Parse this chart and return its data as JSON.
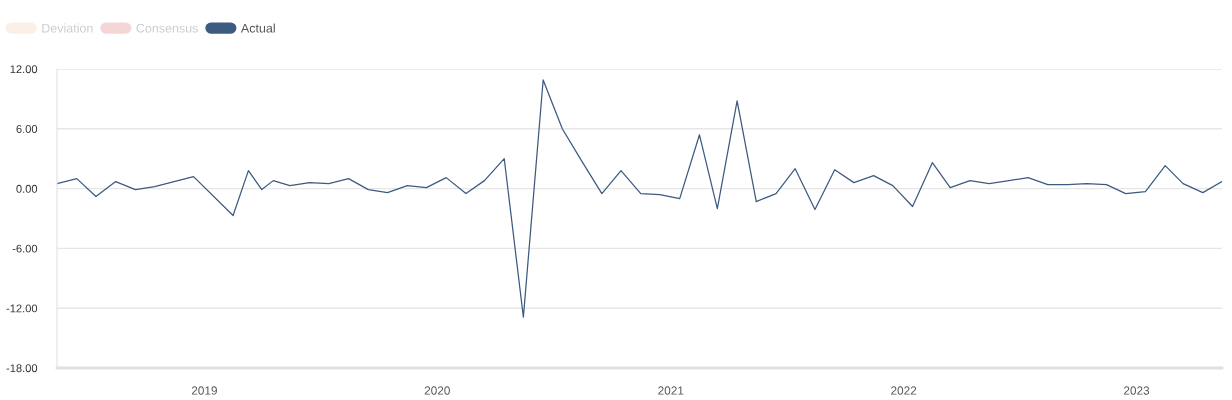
{
  "chart_data": {
    "type": "line",
    "x": [
      "2018-05-15",
      "2018-06-15",
      "2018-07-15",
      "2018-08-15",
      "2018-09-15",
      "2018-10-15",
      "2018-12-15",
      "2019-02-15",
      "2019-03-11",
      "2019-04-01",
      "2019-04-19",
      "2019-05-15",
      "2019-06-15",
      "2019-07-15",
      "2019-08-15",
      "2019-09-15",
      "2019-10-15",
      "2019-11-15",
      "2019-12-15",
      "2020-01-15",
      "2020-02-15",
      "2020-03-15",
      "2020-04-15",
      "2020-05-15",
      "2020-06-15",
      "2020-07-15",
      "2020-08-15",
      "2020-09-15",
      "2020-10-15",
      "2020-11-15",
      "2020-12-15",
      "2021-01-15",
      "2021-02-15",
      "2021-03-15",
      "2021-04-15",
      "2021-05-15",
      "2021-06-15",
      "2021-07-15",
      "2021-08-15",
      "2021-09-15",
      "2021-10-15",
      "2021-11-15",
      "2021-12-15",
      "2022-01-15",
      "2022-02-15",
      "2022-03-15",
      "2022-04-15",
      "2022-05-15",
      "2022-06-15",
      "2022-07-15",
      "2022-08-15",
      "2022-09-15",
      "2022-10-15",
      "2022-11-15",
      "2022-12-15",
      "2023-01-15",
      "2023-02-15",
      "2023-03-15",
      "2023-04-15",
      "2023-05-15"
    ],
    "series": [
      {
        "name": "Deviation",
        "color": "#fcefe5",
        "values": [
          null,
          null,
          null,
          null,
          null,
          null,
          null,
          null,
          null,
          null,
          null,
          null,
          null,
          null,
          null,
          null,
          null,
          null,
          null,
          null,
          null,
          null,
          null,
          null,
          null,
          null,
          null,
          null,
          null,
          null,
          null,
          null,
          null,
          null,
          null,
          null,
          null,
          null,
          null,
          null,
          null,
          null,
          null,
          null,
          null,
          null,
          null,
          null,
          null,
          null,
          null,
          null,
          null,
          null,
          null,
          null,
          null,
          null,
          null,
          null
        ]
      },
      {
        "name": "Consensus",
        "color": "#f5d6d6",
        "values": [
          null,
          null,
          null,
          null,
          null,
          null,
          null,
          null,
          null,
          null,
          null,
          null,
          null,
          null,
          null,
          null,
          null,
          null,
          null,
          null,
          null,
          null,
          null,
          null,
          null,
          null,
          null,
          null,
          null,
          null,
          null,
          null,
          null,
          null,
          null,
          null,
          null,
          null,
          null,
          null,
          null,
          null,
          null,
          null,
          null,
          null,
          null,
          null,
          null,
          null,
          null,
          null,
          null,
          null,
          null,
          null,
          null,
          null,
          null,
          null
        ]
      },
      {
        "name": "Actual",
        "color": "#3d5a80",
        "values": [
          0.5,
          1.0,
          -0.8,
          0.7,
          -0.1,
          0.2,
          1.2,
          -2.7,
          1.8,
          -0.1,
          0.8,
          0.3,
          0.6,
          0.5,
          1.0,
          -0.1,
          -0.4,
          0.3,
          0.1,
          1.1,
          -0.5,
          0.8,
          3.0,
          -12.9,
          10.9,
          6.0,
          2.7,
          -0.5,
          1.8,
          -0.5,
          -0.6,
          -1.0,
          5.4,
          -2.0,
          8.8,
          -1.3,
          -0.5,
          2.0,
          -2.1,
          1.9,
          0.6,
          1.3,
          0.3,
          -1.8,
          2.6,
          0.1,
          0.8,
          0.5,
          0.8,
          1.1,
          0.4,
          0.4,
          0.5,
          0.4,
          -0.5,
          -0.3,
          2.3,
          0.5,
          -0.4,
          0.7
        ]
      }
    ],
    "xlim": [
      "2018-05-15",
      "2023-05-15"
    ],
    "xticks": [
      "2019",
      "2020",
      "2021",
      "2022",
      "2023"
    ],
    "ylim": [
      -18,
      12
    ],
    "yticks": [
      {
        "value": -18,
        "label": "-18.00"
      },
      {
        "value": -12,
        "label": "-12.00"
      },
      {
        "value": -6,
        "label": "-6.00"
      },
      {
        "value": 0,
        "label": "0.00"
      },
      {
        "value": 6,
        "label": "6.00"
      },
      {
        "value": 12,
        "label": "12.00"
      }
    ],
    "grid": "y",
    "legend": "top left",
    "line_style": "solid",
    "marker": "none"
  }
}
